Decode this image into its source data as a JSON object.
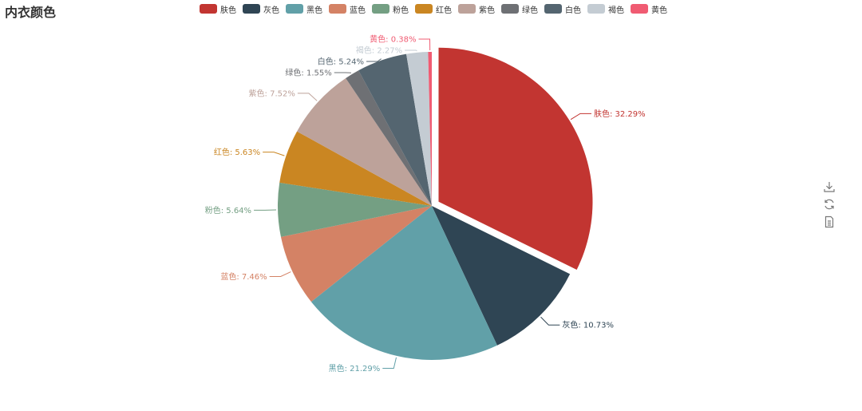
{
  "chart_data": {
    "type": "pie",
    "title": "内衣颜色",
    "slices": [
      {
        "name": "肤色",
        "percent": 32.29,
        "label": "肤色: 32.29%",
        "color": "#c23531"
      },
      {
        "name": "灰色",
        "percent": 10.73,
        "label": "灰色: 10.73%",
        "color": "#2f4554"
      },
      {
        "name": "黑色",
        "percent": 21.29,
        "label": "黑色: 21.29%",
        "color": "#61a0a8"
      },
      {
        "name": "蓝色",
        "percent": 7.46,
        "label": "蓝色: 7.46%",
        "color": "#d48265"
      },
      {
        "name": "粉色",
        "percent": 5.64,
        "label": "粉色: 5.64%",
        "color": "#749f83"
      },
      {
        "name": "红色",
        "percent": 5.63,
        "label": "红色: 5.63%",
        "color": "#ca8622"
      },
      {
        "name": "紫色",
        "percent": 7.52,
        "label": "紫色: 7.52%",
        "color": "#bda29a"
      },
      {
        "name": "绿色",
        "percent": 1.55,
        "label": "绿色: 1.55%",
        "color": "#6e7074"
      },
      {
        "name": "白色",
        "percent": 5.24,
        "label": "白色: 5.24%",
        "color": "#546570"
      },
      {
        "name": "褐色",
        "percent": 2.27,
        "label": "褐色: 2.27%",
        "color": "#c4ccd3"
      },
      {
        "name": "黄色",
        "percent": 0.38,
        "label": "黄色: 0.38%",
        "color": "#f05b72"
      }
    ],
    "highlighted": "肤色",
    "legend_position": "top-center"
  },
  "toolbox": {
    "icons": [
      "download-icon",
      "refresh-icon",
      "data-view-icon"
    ]
  }
}
